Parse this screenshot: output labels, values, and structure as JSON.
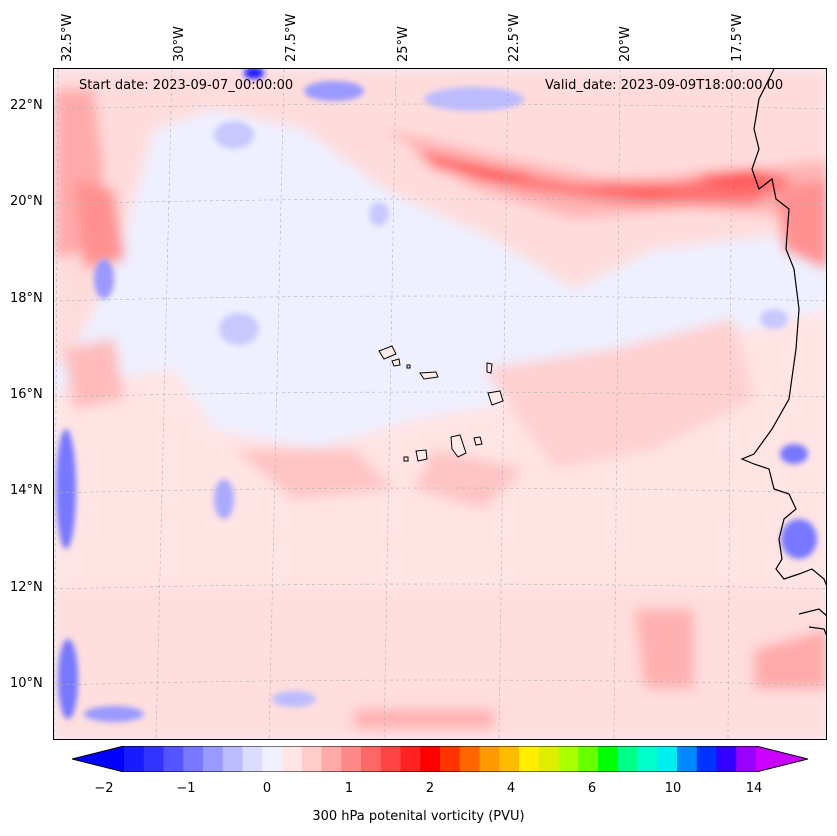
{
  "map": {
    "start_date": "Start date: 2023-09-07_00:00:00",
    "valid_date": "Valid_date: 2023-09-09T18:00:00.00",
    "lon_labels": [
      "32.5°W",
      "30°W",
      "27.5°W",
      "25°W",
      "22.5°W",
      "20°W",
      "17.5°W"
    ],
    "lat_labels": [
      "22°N",
      "20°N",
      "18°N",
      "16°N",
      "14°N",
      "12°N",
      "10°N"
    ],
    "colorbar": {
      "title": "300 hPa potenital vorticity (PVU)",
      "ticks": [
        "−2",
        "−1",
        "0",
        "1",
        "2",
        "4",
        "6",
        "10",
        "14"
      ],
      "under_color": "#0000ff",
      "over_color": "#cc00ff",
      "colors": [
        "#1a1aff",
        "#3333ff",
        "#5555ff",
        "#7777ff",
        "#9999ff",
        "#bbbbff",
        "#dcdcff",
        "#f0f0ff",
        "#ffe6e6",
        "#ffcccc",
        "#ffaaaa",
        "#ff8888",
        "#ff6666",
        "#ff4444",
        "#ff2222",
        "#ff0000",
        "#ff3300",
        "#ff6600",
        "#ff9900",
        "#ffbb00",
        "#ffee00",
        "#ddee00",
        "#aaff00",
        "#66ff00",
        "#00ff00",
        "#00ff88",
        "#00ffcc",
        "#00eeee",
        "#0088ff",
        "#0033ff",
        "#3300ff",
        "#9900ff"
      ]
    }
  }
}
